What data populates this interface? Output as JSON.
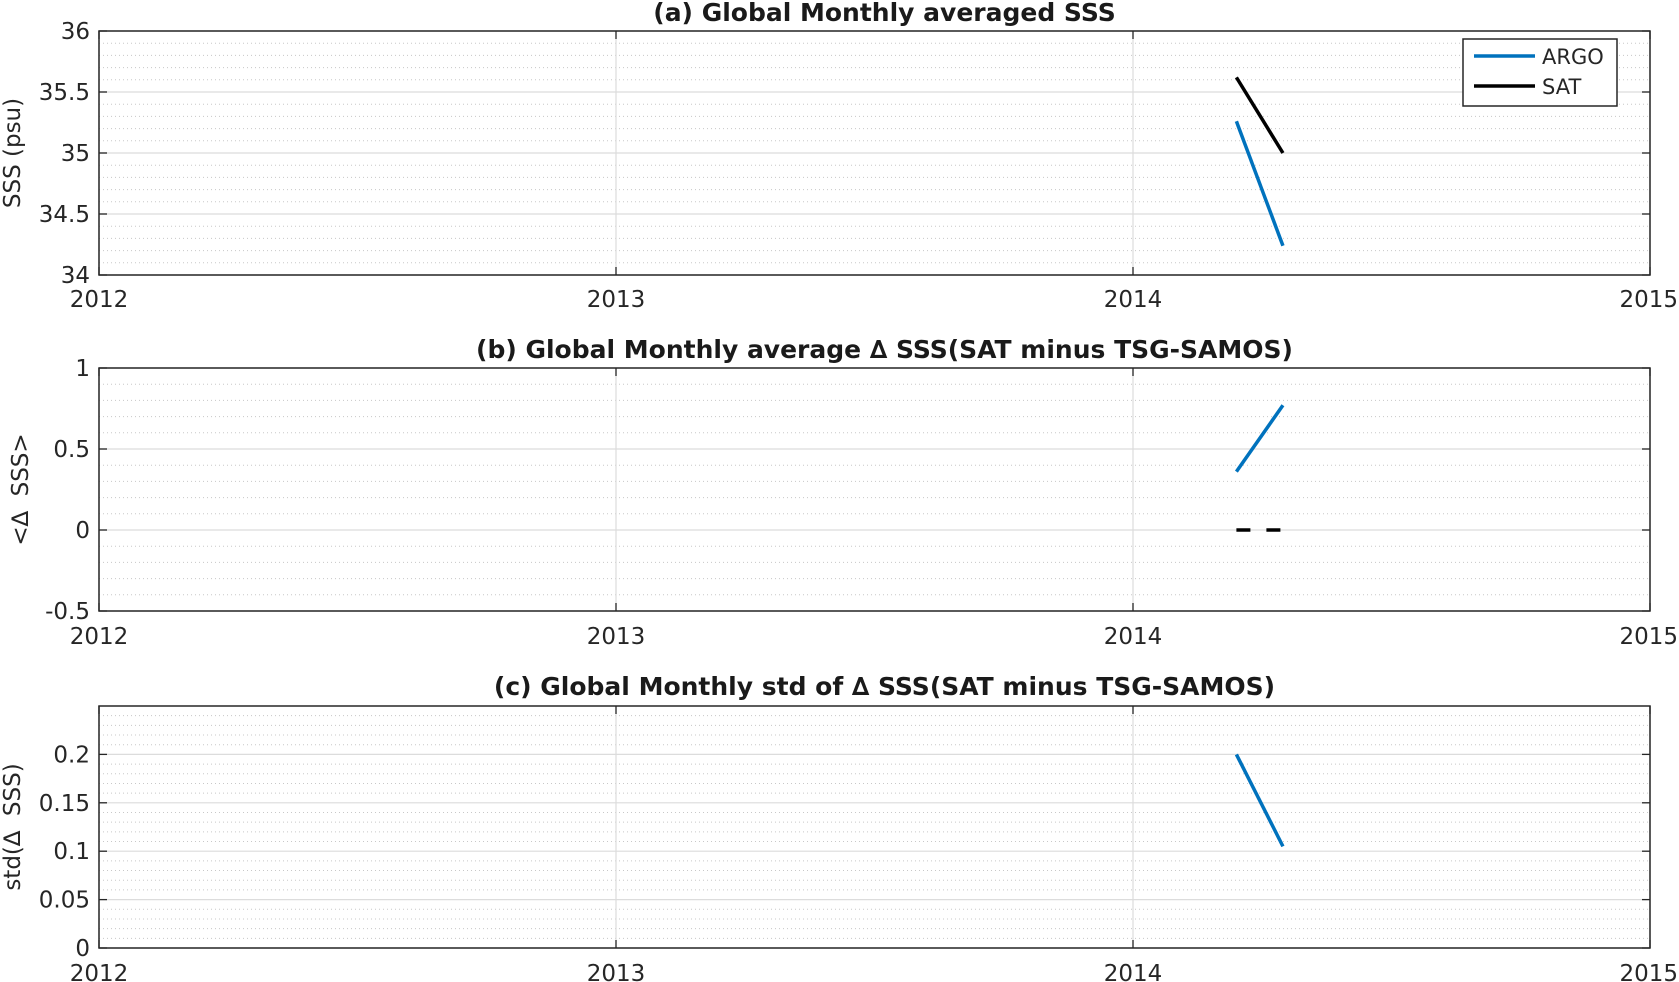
{
  "chart_data": [
    {
      "type": "line",
      "title": "(a) Global Monthly averaged SSS",
      "xlabel": "",
      "ylabel": "SSS (psu)",
      "xlim": [
        2012,
        2015
      ],
      "ylim": [
        34,
        36
      ],
      "xticks": [
        2012,
        2013,
        2014,
        2015
      ],
      "xtick_labels": [
        "2012",
        "2013",
        "2014",
        "2015"
      ],
      "yticks": [
        34,
        34.5,
        35,
        35.5,
        36
      ],
      "ytick_labels": [
        "34",
        "34.5",
        "35",
        "35.5",
        "36"
      ],
      "minor_grid": true,
      "grid": true,
      "legend": {
        "placement": "top-right",
        "entries": [
          "ARGO",
          "SAT"
        ]
      },
      "series": [
        {
          "name": "ARGO",
          "color": "#0072BD",
          "style": "solid",
          "x": [
            2014.2,
            2014.29
          ],
          "y": [
            35.26,
            34.24
          ]
        },
        {
          "name": "SAT",
          "color": "#000000",
          "style": "solid",
          "x": [
            2014.2,
            2014.29
          ],
          "y": [
            35.62,
            35.0
          ]
        }
      ]
    },
    {
      "type": "line",
      "title": "(b) Global Monthly average ∆ SSS(SAT minus TSG-SAMOS)",
      "xlabel": "",
      "ylabel": "<∆  SSS>",
      "xlim": [
        2012,
        2015
      ],
      "ylim": [
        -0.5,
        1
      ],
      "xticks": [
        2012,
        2013,
        2014,
        2015
      ],
      "xtick_labels": [
        "2012",
        "2013",
        "2014",
        "2015"
      ],
      "yticks": [
        -0.5,
        0,
        0.5,
        1
      ],
      "ytick_labels": [
        "-0.5",
        "0",
        "0.5",
        "1"
      ],
      "minor_grid": true,
      "grid": true,
      "series": [
        {
          "color": "#0072BD",
          "style": "solid",
          "x": [
            2014.2,
            2014.29
          ],
          "y": [
            0.36,
            0.77
          ]
        },
        {
          "color": "#000000",
          "style": "dashed",
          "x": [
            2014.2,
            2014.29
          ],
          "y": [
            0,
            0
          ]
        }
      ]
    },
    {
      "type": "line",
      "title": "(c) Global Monthly std of ∆ SSS(SAT minus TSG-SAMOS)",
      "xlabel": "",
      "ylabel": "std(∆  SSS)",
      "xlim": [
        2012,
        2015
      ],
      "ylim": [
        0,
        0.25
      ],
      "xticks": [
        2012,
        2013,
        2014,
        2015
      ],
      "xtick_labels": [
        "2012",
        "2013",
        "2014",
        "2015"
      ],
      "yticks": [
        0,
        0.05,
        0.1,
        0.15,
        0.2
      ],
      "ytick_labels": [
        "0",
        "0.05",
        "0.1",
        "0.15",
        "0.2"
      ],
      "minor_grid": true,
      "grid": true,
      "series": [
        {
          "color": "#0072BD",
          "style": "solid",
          "x": [
            2014.2,
            2014.29
          ],
          "y": [
            0.2,
            0.105
          ]
        }
      ]
    }
  ]
}
